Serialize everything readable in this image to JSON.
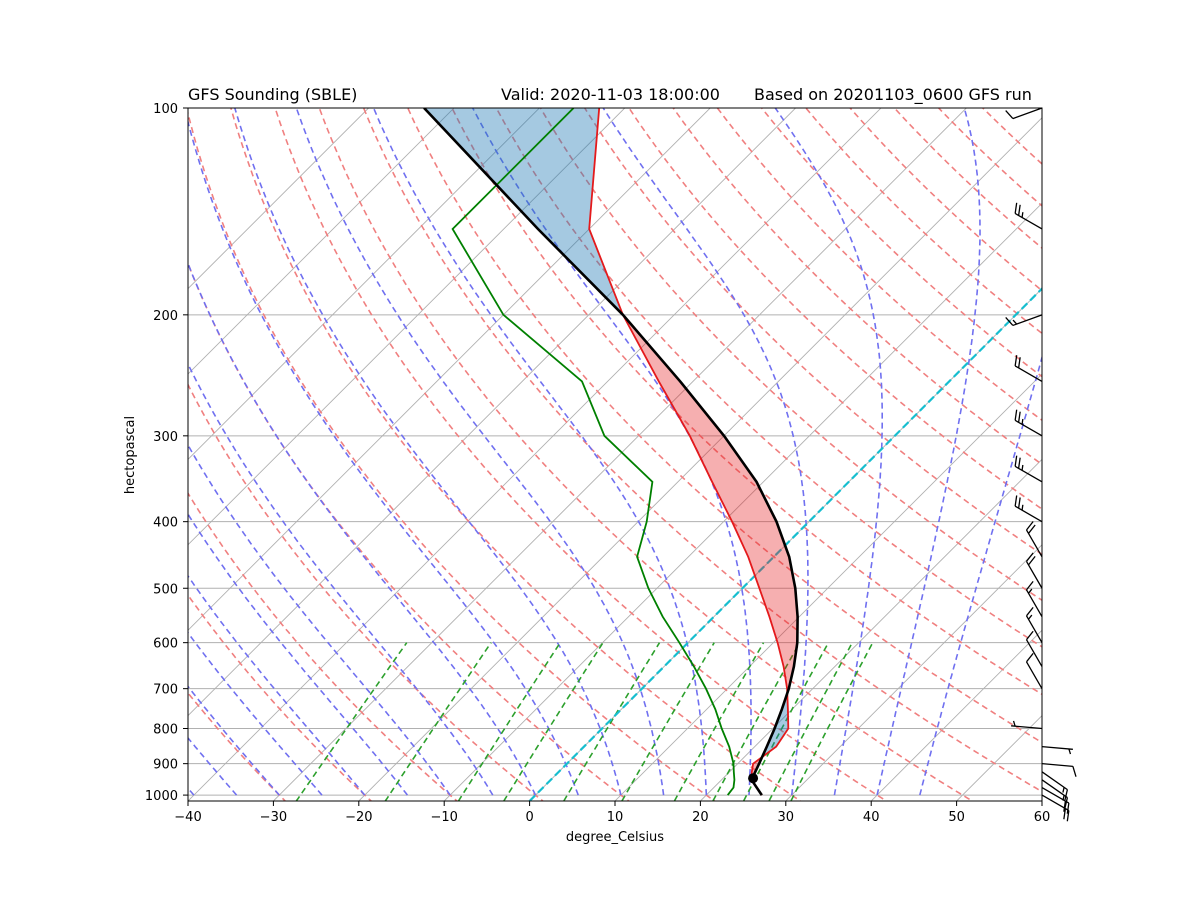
{
  "chart_data": {
    "type": "line",
    "title_left": "GFS Sounding (SBLE)",
    "title_center": "Valid: 2020-11-03 18:00:00",
    "title_right": "Based on 20201103_0600 GFS run",
    "xlabel": "degree_Celsius",
    "ylabel": "hectopascal",
    "xlim": [
      -40,
      60
    ],
    "ylim": [
      1020,
      100
    ],
    "y_scale": "log",
    "x_ticks": [
      -40,
      -30,
      -20,
      -10,
      0,
      10,
      20,
      30,
      40,
      50,
      60
    ],
    "x_tick_labels": [
      "−40",
      "−30",
      "−20",
      "−10",
      "0",
      "10",
      "20",
      "30",
      "40",
      "50",
      "60"
    ],
    "y_ticks": [
      1000,
      900,
      800,
      700,
      600,
      500,
      400,
      300,
      200,
      100
    ],
    "y_tick_labels": [
      "1000",
      "900",
      "800",
      "700",
      "600",
      "500",
      "400",
      "300",
      "200",
      "100"
    ],
    "skew": true,
    "grid": true,
    "colors": {
      "temperature": "#e41a1c",
      "dewpoint": "#008000",
      "parcel": "#000000",
      "cape": "#e41a1c",
      "cin": "#1f77b4",
      "dry_adiabats": "#f08080",
      "moist_adiabats": "#7070f0",
      "mixing_ratio": "#2ca02c",
      "isotherm_0": "#17becf"
    },
    "series": [
      {
        "role": "temperature",
        "pressure": [
          1000,
          975,
          950,
          925,
          900,
          850,
          800,
          750,
          700,
          650,
          600,
          550,
          500,
          450,
          400,
          350,
          300,
          250,
          200,
          150,
          100
        ],
        "values": [
          26.5,
          25.0,
          23.5,
          22.6,
          21.8,
          22.5,
          21.8,
          19.5,
          17.0,
          14.0,
          10.5,
          6.5,
          2.0,
          -3.0,
          -9.0,
          -16.0,
          -24.0,
          -34.0,
          -46.0,
          -60.0,
          -73.0
        ]
      },
      {
        "role": "dewpoint",
        "pressure": [
          1000,
          975,
          950,
          925,
          900,
          850,
          800,
          750,
          700,
          650,
          600,
          550,
          500,
          450,
          400,
          350,
          300,
          250,
          200,
          150,
          100
        ],
        "values": [
          22.5,
          22.3,
          21.5,
          20.5,
          19.5,
          17.0,
          14.0,
          11.0,
          7.5,
          3.5,
          -1.0,
          -6.0,
          -11.0,
          -16.0,
          -19.0,
          -23.0,
          -34.0,
          -43.0,
          -60.0,
          -76.0,
          -76.0
        ]
      },
      {
        "role": "parcel",
        "pressure": [
          1000,
          950,
          900,
          850,
          800,
          750,
          700,
          650,
          600,
          550,
          500,
          450,
          400,
          350,
          300,
          250,
          200,
          150,
          100
        ],
        "values": [
          26.5,
          23.5,
          22.5,
          21.4,
          20.2,
          18.8,
          17.2,
          15.2,
          12.8,
          9.8,
          6.2,
          1.8,
          -3.8,
          -10.8,
          -20.0,
          -31.5,
          -46.0,
          -66.0,
          -93.5
        ]
      }
    ],
    "lcl": {
      "pressure": 945,
      "temperature": 23.5
    },
    "wind_barbs_pressure": [
      1000,
      975,
      950,
      925,
      900,
      850,
      800,
      700,
      650,
      600,
      550,
      500,
      450,
      400,
      350,
      300,
      250,
      200,
      150,
      100
    ],
    "wind_barbs_speed_kt": [
      20,
      20,
      15,
      15,
      10,
      5,
      5,
      10,
      10,
      15,
      15,
      20,
      20,
      25,
      25,
      25,
      20,
      15,
      25,
      10
    ],
    "wind_barbs_dir_deg": [
      120,
      120,
      125,
      125,
      95,
      95,
      275,
      330,
      330,
      330,
      330,
      330,
      330,
      300,
      300,
      300,
      300,
      250,
      300,
      250
    ]
  }
}
